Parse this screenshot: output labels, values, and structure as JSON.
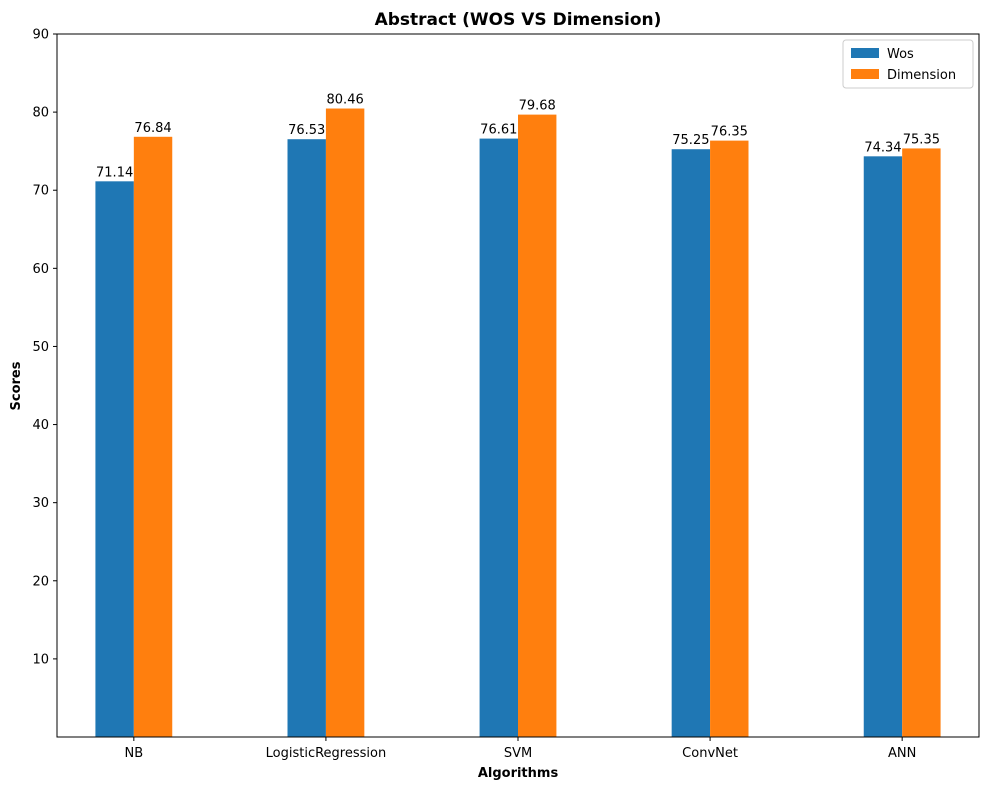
{
  "chart_data": {
    "type": "bar",
    "title": "Abstract (WOS VS Dimension)",
    "xlabel": "Algorithms",
    "ylabel": "Scores",
    "categories": [
      "NB",
      "LogisticRegression",
      "SVM",
      "ConvNet",
      "ANN"
    ],
    "series": [
      {
        "name": "Wos",
        "color": "#1f77b4",
        "values": [
          71.14,
          76.53,
          76.61,
          75.25,
          74.34
        ]
      },
      {
        "name": "Dimension",
        "color": "#ff7f0e",
        "values": [
          76.84,
          80.46,
          79.68,
          76.35,
          75.35
        ]
      }
    ],
    "data_labels": [
      [
        "71.14",
        "76.53",
        "76.61",
        "75.25",
        "74.34"
      ],
      [
        "76.84",
        "80.46",
        "79.68",
        "76.35",
        "75.35"
      ]
    ],
    "ylim": [
      0,
      90
    ],
    "yticks": [
      "10",
      "20",
      "30",
      "40",
      "50",
      "60",
      "70",
      "80",
      "90"
    ],
    "grid": false,
    "legend_position": "top-right"
  }
}
